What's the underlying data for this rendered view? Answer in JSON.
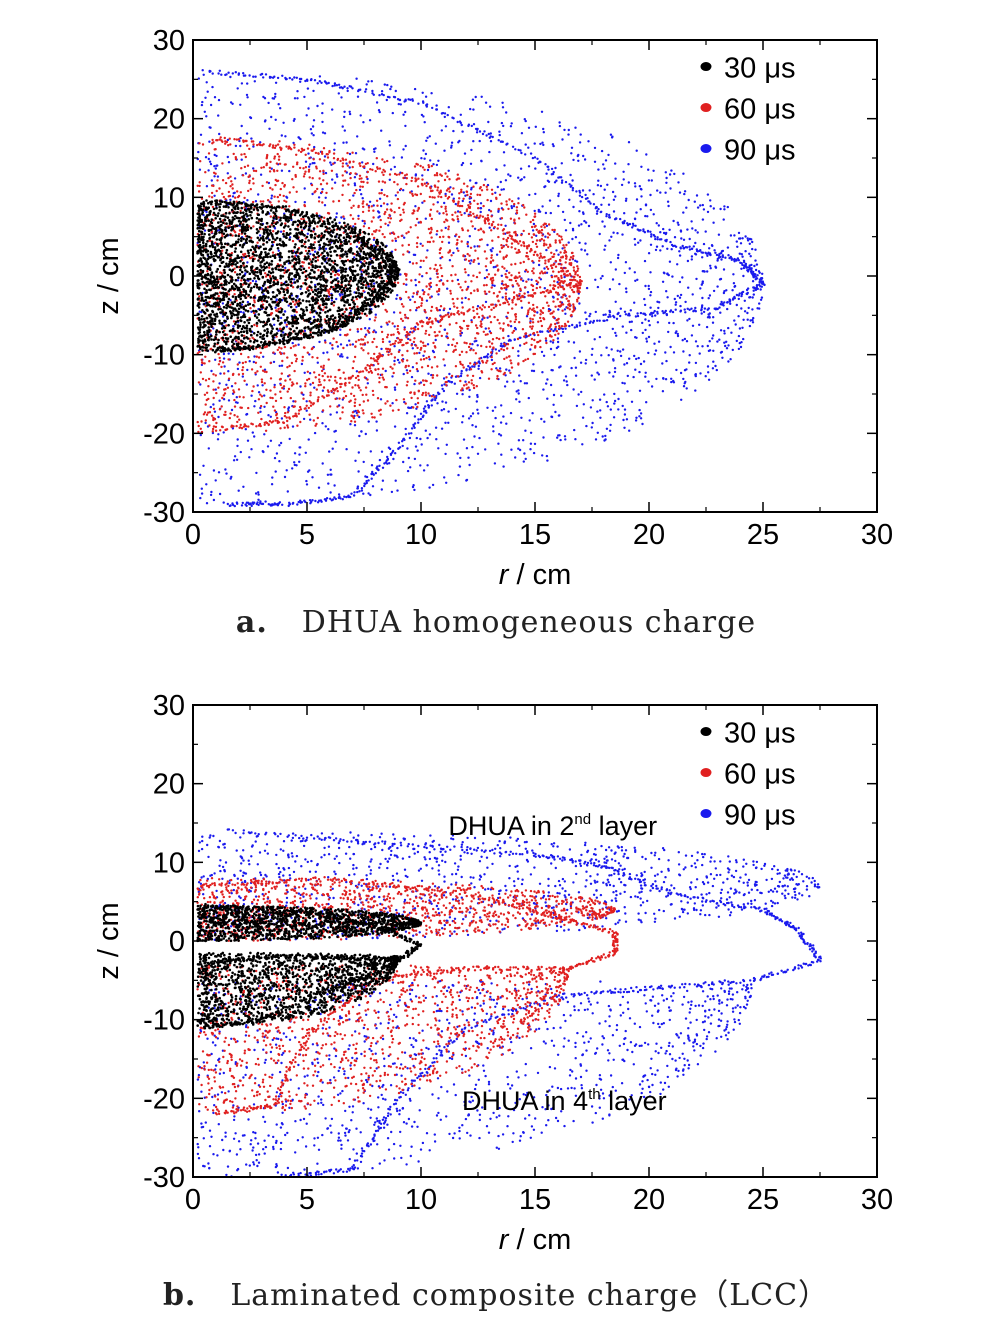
{
  "chart_data": [
    {
      "type": "scatter",
      "panel_tag": "a.",
      "caption": "DHUA homogeneous charge",
      "xlabel_italic": "r",
      "xlabel_unit": " / cm",
      "ylabel": "z / cm",
      "xlim": [
        0,
        30
      ],
      "ylim": [
        -30,
        30
      ],
      "xticks": [
        "0",
        "5",
        "10",
        "15",
        "20",
        "25",
        "30"
      ],
      "yticks": [
        "30",
        "20",
        "10",
        "0",
        "-10",
        "-20",
        "-30"
      ],
      "legend_position": "top-right",
      "annotations": [],
      "series": [
        {
          "name": "30 μs",
          "color": "#000000",
          "envelope": {
            "x_max": 9.0,
            "z_top": 9.5,
            "z_bottom": -9.5,
            "tip_z": 0.5
          },
          "outline_points": [
            [
              0.5,
              9.5
            ],
            [
              4,
              8.7
            ],
            [
              7,
              5.5
            ],
            [
              9,
              1
            ],
            [
              8,
              -3
            ],
            [
              6,
              -7
            ],
            [
              3,
              -9
            ],
            [
              1,
              -9.5
            ]
          ]
        },
        {
          "name": "60 μs",
          "color": "#e02020",
          "envelope": {
            "x_max": 17.0,
            "z_top": 17.5,
            "z_bottom": -20,
            "tip_z": -1
          },
          "outline_points": [
            [
              1,
              17.5
            ],
            [
              5,
              16
            ],
            [
              10,
              12
            ],
            [
              14,
              5
            ],
            [
              17,
              -1
            ],
            [
              14,
              -3
            ],
            [
              10,
              -6
            ],
            [
              7,
              -13
            ],
            [
              4,
              -18.5
            ],
            [
              1,
              -19.5
            ]
          ]
        },
        {
          "name": "90 μs",
          "color": "#1a1aee",
          "envelope": {
            "x_max": 25.0,
            "z_top": 26,
            "z_bottom": -29,
            "tip_z": -1
          },
          "outline_points": [
            [
              0.5,
              26
            ],
            [
              5,
              25
            ],
            [
              10,
              22
            ],
            [
              15,
              15
            ],
            [
              18,
              8
            ],
            [
              21,
              4
            ],
            [
              24,
              2
            ],
            [
              25,
              -1
            ],
            [
              23,
              -4
            ],
            [
              19,
              -5
            ],
            [
              14,
              -8
            ],
            [
              11,
              -14
            ],
            [
              9,
              -22
            ],
            [
              7,
              -28
            ],
            [
              4,
              -29
            ],
            [
              1.5,
              -29
            ]
          ]
        }
      ]
    },
    {
      "type": "scatter",
      "panel_tag": "b.",
      "caption": "Laminated composite charge（LCC）",
      "xlabel_italic": "r",
      "xlabel_unit": " / cm",
      "ylabel": "z / cm",
      "xlim": [
        0,
        30
      ],
      "ylim": [
        -30,
        30
      ],
      "xticks": [
        "0",
        "5",
        "10",
        "15",
        "20",
        "25",
        "30"
      ],
      "yticks": [
        "30",
        "20",
        "10",
        "0",
        "-10",
        "-20",
        "-30"
      ],
      "legend_position": "top-right",
      "annotations": [
        {
          "text": "DHUA in 2",
          "sup": "nd",
          "after": " layer",
          "x": 11.2,
          "z": 13.5
        },
        {
          "text": "DHUA in 4",
          "sup": "th",
          "after": " layer",
          "x": 11.8,
          "z": -21.5
        }
      ],
      "series": [
        {
          "name": "30 μs",
          "color": "#000000",
          "upper_lobe": {
            "x_max": 10,
            "z_top": 4.5,
            "z_bottom": 0
          },
          "lower_lobe": {
            "x_max": 9,
            "z_top": -1.5,
            "z_bottom": -11
          },
          "outline_points": [
            [
              0.5,
              4.5
            ],
            [
              4,
              4
            ],
            [
              8,
              2
            ],
            [
              10,
              -0.5
            ],
            [
              9,
              -2.5
            ],
            [
              6,
              -2
            ],
            [
              3,
              -2
            ],
            [
              0.5,
              -3
            ],
            [
              0.5,
              -11
            ],
            [
              3,
              -10
            ],
            [
              6,
              -6
            ],
            [
              9,
              -3
            ]
          ]
        },
        {
          "name": "60 μs",
          "color": "#e02020",
          "upper_lobe": {
            "x_max": 18.5,
            "z_top": 8,
            "z_bottom": 0
          },
          "lower_lobe": {
            "x_max": 16.5,
            "z_top": -3,
            "z_bottom": -22
          },
          "outline_points": [
            [
              0.5,
              7
            ],
            [
              6,
              8
            ],
            [
              12,
              6
            ],
            [
              16,
              3
            ],
            [
              18.5,
              1
            ],
            [
              18.5,
              -1.5
            ],
            [
              16.5,
              -3.5
            ],
            [
              12,
              -3.5
            ],
            [
              8,
              -5
            ],
            [
              5,
              -12
            ],
            [
              3.5,
              -21
            ],
            [
              1,
              -22
            ]
          ]
        },
        {
          "name": "90 μs",
          "color": "#1a1aee",
          "upper_lobe": {
            "x_max": 27.5,
            "z_top": 14,
            "z_bottom": 0
          },
          "lower_lobe": {
            "x_max": 24.5,
            "z_top": -5,
            "z_bottom": -30
          },
          "outline_points": [
            [
              1.5,
              14
            ],
            [
              8,
              12.5
            ],
            [
              15,
              11
            ],
            [
              18,
              9.5
            ],
            [
              21,
              6
            ],
            [
              25,
              4
            ],
            [
              26.5,
              1.5
            ],
            [
              27.5,
              -2.5
            ],
            [
              24.5,
              -5
            ],
            [
              20,
              -6
            ],
            [
              16,
              -7
            ],
            [
              12,
              -11
            ],
            [
              9,
              -20
            ],
            [
              7,
              -29
            ],
            [
              4,
              -30
            ]
          ]
        }
      ]
    }
  ]
}
